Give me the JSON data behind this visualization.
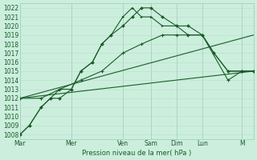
{
  "bg_color": "#cceedd",
  "grid_color_minor": "#bbddcc",
  "grid_color_major": "#99ccbb",
  "line_color": "#1a5c28",
  "xlabel": "Pression niveau de la mer( hPa )",
  "ylim": [
    1007.5,
    1022.5
  ],
  "yticks": [
    1008,
    1009,
    1010,
    1011,
    1012,
    1013,
    1014,
    1015,
    1016,
    1017,
    1018,
    1019,
    1020,
    1021,
    1022
  ],
  "day_labels": [
    "Mar",
    "Mer",
    "Ven",
    "Sam",
    "Dim",
    "Lun",
    "M"
  ],
  "day_positions_norm": [
    0.0,
    0.22,
    0.44,
    0.56,
    0.67,
    0.78,
    0.95
  ],
  "xlim": [
    0,
    1.0
  ],
  "series1_x": [
    0.0,
    0.04,
    0.09,
    0.13,
    0.17,
    0.22,
    0.26,
    0.31,
    0.35,
    0.39,
    0.44,
    0.48,
    0.52,
    0.56,
    0.61,
    0.67,
    0.72,
    0.78,
    0.83,
    0.89,
    0.95,
    1.0
  ],
  "series1_y": [
    1008,
    1009,
    1011,
    1012,
    1012,
    1013,
    1015,
    1016,
    1018,
    1019,
    1020,
    1021,
    1022,
    1022,
    1021,
    1020,
    1020,
    1019,
    1017,
    1015,
    1015,
    1015
  ],
  "series2_x": [
    0.0,
    0.04,
    0.09,
    0.13,
    0.17,
    0.22,
    0.26,
    0.31,
    0.35,
    0.39,
    0.44,
    0.48,
    0.52,
    0.56,
    0.61,
    0.67,
    0.72,
    0.78,
    0.83,
    0.89,
    0.95,
    1.0
  ],
  "series2_y": [
    1008,
    1009,
    1011,
    1012,
    1013,
    1013,
    1015,
    1016,
    1018,
    1019,
    1021,
    1022,
    1021,
    1021,
    1020,
    1020,
    1019,
    1019,
    1017,
    1015,
    1015,
    1015
  ],
  "series3_x": [
    0.0,
    0.09,
    0.17,
    0.26,
    0.35,
    0.44,
    0.52,
    0.61,
    0.67,
    0.72,
    0.78,
    0.89,
    0.95,
    1.0
  ],
  "series3_y": [
    1012,
    1012,
    1013,
    1014,
    1015,
    1017,
    1018,
    1019,
    1019,
    1019,
    1019,
    1014,
    1015,
    1015
  ],
  "series4_x": [
    0.0,
    1.0
  ],
  "series4_y": [
    1012,
    1019
  ],
  "series5_x": [
    0.0,
    1.0
  ],
  "series5_y": [
    1012,
    1015
  ]
}
